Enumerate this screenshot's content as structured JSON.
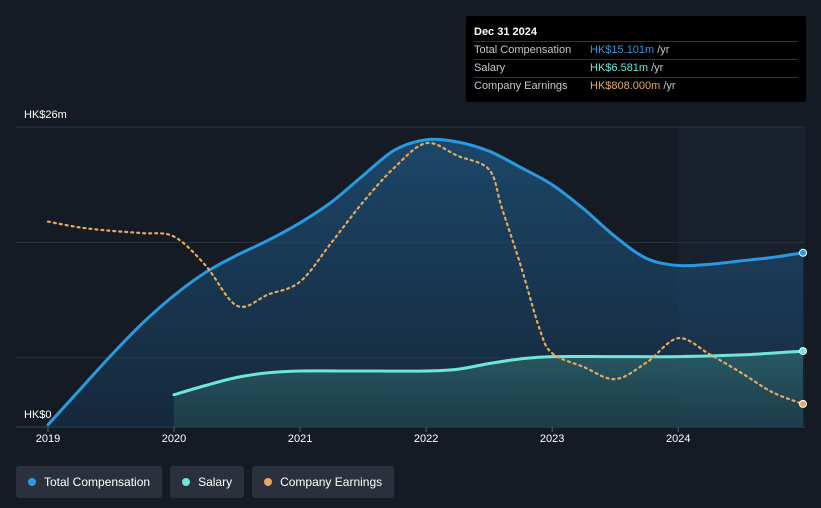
{
  "tooltip": {
    "date": "Dec 31 2024",
    "rows": [
      {
        "label": "Total Compensation",
        "value": "HK$15.101m",
        "unit": "/yr",
        "color": "#2a9ae0"
      },
      {
        "label": "Salary",
        "value": "HK$6.581m",
        "unit": "/yr",
        "color": "#6ee6d8"
      },
      {
        "label": "Company Earnings",
        "value": "HK$808.000m",
        "unit": "/yr",
        "color": "#e6a95e"
      }
    ]
  },
  "legend": [
    {
      "label": "Total Compensation",
      "color": "#2a9ae0"
    },
    {
      "label": "Salary",
      "color": "#6ee6d8"
    },
    {
      "label": "Company Earnings",
      "color": "#e6a95e"
    }
  ],
  "chart_data": {
    "type": "line",
    "y_top_label": "HK$26m",
    "y_bottom_label": "HK$0",
    "ylim": [
      0,
      26
    ],
    "xlim": [
      2019.0,
      2024.99
    ],
    "x_ticks": [
      {
        "value": 2019,
        "label": "2019"
      },
      {
        "value": 2020,
        "label": "2020"
      },
      {
        "value": 2021,
        "label": "2021"
      },
      {
        "value": 2022,
        "label": "2022"
      },
      {
        "value": 2023,
        "label": "2023"
      },
      {
        "value": 2024,
        "label": "2024"
      }
    ],
    "highlight_from": 2024.0,
    "series": [
      {
        "name": "Total Compensation",
        "color": "#2a9ae0",
        "fill": true,
        "points": [
          [
            2019.0,
            0.2
          ],
          [
            2019.25,
            3.2
          ],
          [
            2019.5,
            6.2
          ],
          [
            2019.75,
            9.0
          ],
          [
            2020.0,
            11.4
          ],
          [
            2020.25,
            13.4
          ],
          [
            2020.5,
            14.9
          ],
          [
            2020.75,
            16.2
          ],
          [
            2021.0,
            17.7
          ],
          [
            2021.25,
            19.5
          ],
          [
            2021.5,
            21.8
          ],
          [
            2021.75,
            24.0
          ],
          [
            2022.0,
            24.9
          ],
          [
            2022.25,
            24.7
          ],
          [
            2022.5,
            23.9
          ],
          [
            2022.75,
            22.5
          ],
          [
            2023.0,
            21.0
          ],
          [
            2023.25,
            18.9
          ],
          [
            2023.5,
            16.5
          ],
          [
            2023.75,
            14.6
          ],
          [
            2024.0,
            14.0
          ],
          [
            2024.25,
            14.1
          ],
          [
            2024.5,
            14.4
          ],
          [
            2024.75,
            14.7
          ],
          [
            2024.99,
            15.1
          ]
        ]
      },
      {
        "name": "Salary",
        "color": "#6ee6d8",
        "fill": true,
        "points": [
          [
            2020.0,
            2.8
          ],
          [
            2020.25,
            3.6
          ],
          [
            2020.5,
            4.3
          ],
          [
            2020.75,
            4.7
          ],
          [
            2021.0,
            4.85
          ],
          [
            2021.5,
            4.85
          ],
          [
            2022.0,
            4.85
          ],
          [
            2022.25,
            5.0
          ],
          [
            2022.5,
            5.5
          ],
          [
            2022.75,
            5.9
          ],
          [
            2023.0,
            6.1
          ],
          [
            2023.5,
            6.1
          ],
          [
            2024.0,
            6.1
          ],
          [
            2024.5,
            6.25
          ],
          [
            2024.99,
            6.58
          ]
        ]
      },
      {
        "name": "Company Earnings",
        "color": "#e6a95e",
        "dashed": true,
        "points": [
          [
            2019.0,
            17.8
          ],
          [
            2019.25,
            17.3
          ],
          [
            2019.5,
            17.0
          ],
          [
            2019.75,
            16.8
          ],
          [
            2020.0,
            16.5
          ],
          [
            2020.25,
            14.0
          ],
          [
            2020.5,
            10.5
          ],
          [
            2020.75,
            11.5
          ],
          [
            2021.0,
            12.6
          ],
          [
            2021.25,
            16.0
          ],
          [
            2021.5,
            19.5
          ],
          [
            2021.75,
            22.5
          ],
          [
            2022.0,
            24.6
          ],
          [
            2022.25,
            23.5
          ],
          [
            2022.5,
            22.3
          ],
          [
            2022.6,
            19.0
          ],
          [
            2022.75,
            14.0
          ],
          [
            2022.9,
            8.5
          ],
          [
            2023.0,
            6.4
          ],
          [
            2023.25,
            5.2
          ],
          [
            2023.5,
            4.15
          ],
          [
            2023.75,
            5.6
          ],
          [
            2024.0,
            7.7
          ],
          [
            2024.25,
            6.3
          ],
          [
            2024.5,
            4.7
          ],
          [
            2024.75,
            3.0
          ],
          [
            2024.99,
            2.0
          ]
        ]
      }
    ]
  }
}
